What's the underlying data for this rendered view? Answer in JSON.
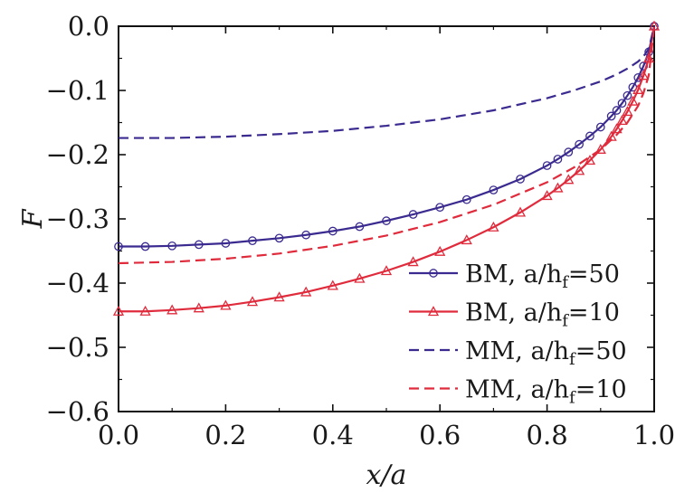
{
  "chart_data": {
    "type": "line",
    "title": "",
    "xlabel": "x/a",
    "ylabel": "F",
    "xlim": [
      0.0,
      1.0
    ],
    "ylim": [
      -0.6,
      0.0
    ],
    "x_ticks": [
      "0.0",
      "0.2",
      "0.4",
      "0.6",
      "0.8",
      "1.0"
    ],
    "y_ticks": [
      "0.0",
      "−0.1",
      "−0.2",
      "−0.3",
      "−0.4",
      "−0.5",
      "−0.6"
    ],
    "legend_position": "bottom-right",
    "grid": false,
    "series": [
      {
        "name": "BM, a/hf=50",
        "label_main": "BM, a/h",
        "label_sub": "f",
        "label_tail": "=50",
        "color": "#3b2a8f",
        "line_style": "solid",
        "marker": "circle",
        "points": [
          [
            0.0,
            -0.343
          ],
          [
            0.05,
            -0.343
          ],
          [
            0.1,
            -0.342
          ],
          [
            0.15,
            -0.34
          ],
          [
            0.2,
            -0.338
          ],
          [
            0.25,
            -0.334
          ],
          [
            0.3,
            -0.33
          ],
          [
            0.35,
            -0.325
          ],
          [
            0.4,
            -0.319
          ],
          [
            0.45,
            -0.312
          ],
          [
            0.5,
            -0.303
          ],
          [
            0.55,
            -0.293
          ],
          [
            0.6,
            -0.282
          ],
          [
            0.65,
            -0.27
          ],
          [
            0.7,
            -0.255
          ],
          [
            0.75,
            -0.238
          ],
          [
            0.8,
            -0.217
          ],
          [
            0.82,
            -0.207
          ],
          [
            0.84,
            -0.196
          ],
          [
            0.86,
            -0.184
          ],
          [
            0.88,
            -0.171
          ],
          [
            0.9,
            -0.157
          ],
          [
            0.92,
            -0.14
          ],
          [
            0.93,
            -0.131
          ],
          [
            0.94,
            -0.12
          ],
          [
            0.95,
            -0.108
          ],
          [
            0.96,
            -0.095
          ],
          [
            0.97,
            -0.08
          ],
          [
            0.98,
            -0.062
          ],
          [
            0.99,
            -0.04
          ],
          [
            1.0,
            0.0
          ]
        ]
      },
      {
        "name": "BM, a/hf=10",
        "label_main": "BM, a/h",
        "label_sub": "f",
        "label_tail": "=10",
        "color": "#e02b3c",
        "line_style": "solid",
        "marker": "triangle",
        "points": [
          [
            0.0,
            -0.444
          ],
          [
            0.05,
            -0.444
          ],
          [
            0.1,
            -0.442
          ],
          [
            0.15,
            -0.439
          ],
          [
            0.2,
            -0.435
          ],
          [
            0.25,
            -0.429
          ],
          [
            0.3,
            -0.422
          ],
          [
            0.35,
            -0.414
          ],
          [
            0.4,
            -0.404
          ],
          [
            0.45,
            -0.393
          ],
          [
            0.5,
            -0.381
          ],
          [
            0.55,
            -0.367
          ],
          [
            0.6,
            -0.351
          ],
          [
            0.65,
            -0.333
          ],
          [
            0.7,
            -0.313
          ],
          [
            0.75,
            -0.29
          ],
          [
            0.8,
            -0.264
          ],
          [
            0.82,
            -0.252
          ],
          [
            0.84,
            -0.239
          ],
          [
            0.86,
            -0.225
          ],
          [
            0.88,
            -0.209
          ],
          [
            0.9,
            -0.192
          ],
          [
            0.92,
            -0.172
          ],
          [
            0.93,
            -0.16
          ],
          [
            0.94,
            -0.147
          ],
          [
            0.95,
            -0.133
          ],
          [
            0.96,
            -0.117
          ],
          [
            0.97,
            -0.099
          ],
          [
            0.98,
            -0.077
          ],
          [
            0.99,
            -0.05
          ],
          [
            1.0,
            0.0
          ]
        ]
      },
      {
        "name": "MM, a/hf=50",
        "label_main": "MM, a/h",
        "label_sub": "f",
        "label_tail": "=50",
        "color": "#3b2a8f",
        "line_style": "dashed",
        "marker": "none",
        "points": [
          [
            0.0,
            -0.174
          ],
          [
            0.1,
            -0.174
          ],
          [
            0.2,
            -0.172
          ],
          [
            0.3,
            -0.168
          ],
          [
            0.4,
            -0.163
          ],
          [
            0.5,
            -0.155
          ],
          [
            0.6,
            -0.145
          ],
          [
            0.7,
            -0.131
          ],
          [
            0.8,
            -0.112
          ],
          [
            0.85,
            -0.1
          ],
          [
            0.9,
            -0.086
          ],
          [
            0.93,
            -0.075
          ],
          [
            0.95,
            -0.066
          ],
          [
            0.97,
            -0.055
          ],
          [
            0.98,
            -0.047
          ],
          [
            0.99,
            -0.035
          ],
          [
            1.0,
            0.0
          ]
        ]
      },
      {
        "name": "MM, a/hf=10",
        "label_main": "MM, a/h",
        "label_sub": "f",
        "label_tail": "=10",
        "color": "#e02b3c",
        "line_style": "dashed",
        "marker": "none",
        "points": [
          [
            0.0,
            -0.369
          ],
          [
            0.1,
            -0.367
          ],
          [
            0.2,
            -0.362
          ],
          [
            0.3,
            -0.354
          ],
          [
            0.4,
            -0.342
          ],
          [
            0.5,
            -0.326
          ],
          [
            0.6,
            -0.305
          ],
          [
            0.7,
            -0.278
          ],
          [
            0.8,
            -0.243
          ],
          [
            0.85,
            -0.22
          ],
          [
            0.9,
            -0.192
          ],
          [
            0.93,
            -0.169
          ],
          [
            0.95,
            -0.15
          ],
          [
            0.97,
            -0.124
          ],
          [
            0.98,
            -0.104
          ],
          [
            0.99,
            -0.076
          ],
          [
            1.0,
            0.0
          ]
        ]
      }
    ]
  }
}
